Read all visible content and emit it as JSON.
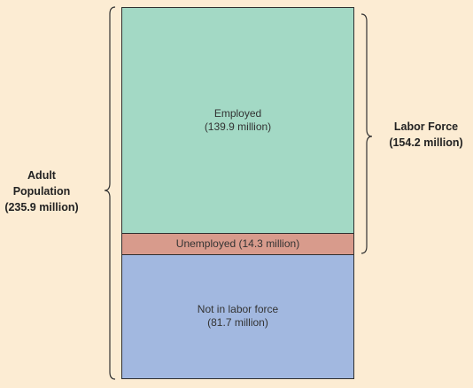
{
  "colors": {
    "background": "#fcecd3",
    "employed": "#a3d9c5",
    "unemployed": "#d89b8c",
    "not_in_labor_force": "#a2b8e0"
  },
  "blocks": {
    "employed": {
      "label": "Employed",
      "value": "(139.9 million)"
    },
    "unemployed": {
      "label": "Unemployed (14.3 million)"
    },
    "not_in_labor_force": {
      "label": "Not in labor force",
      "value": "(81.7 million)"
    }
  },
  "labor_force": {
    "title": "Labor Force",
    "value": "(154.2 million)"
  },
  "adult_population": {
    "line1": "Adult",
    "line2": "Population",
    "value": "(235.9 million)"
  }
}
